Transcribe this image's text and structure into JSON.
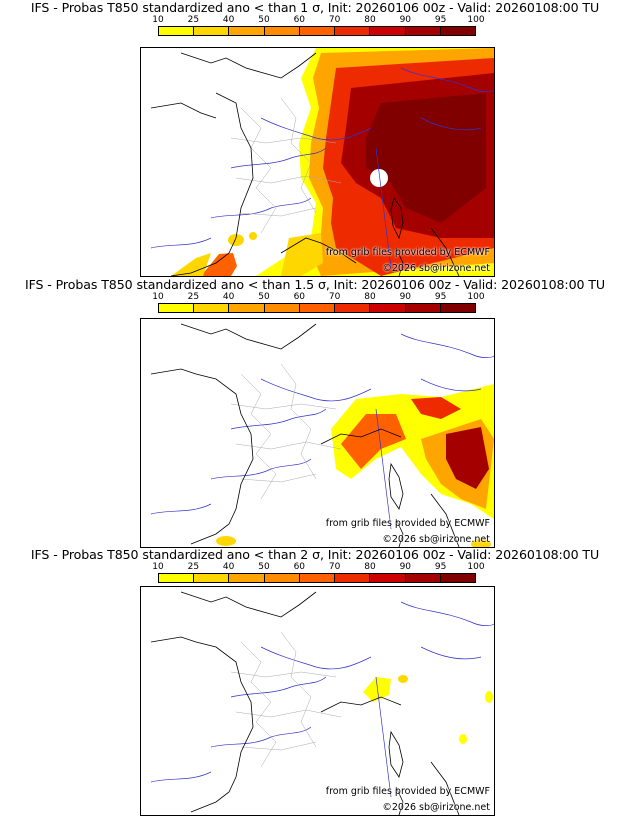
{
  "scale": {
    "labels": [
      "10",
      "25",
      "40",
      "50",
      "60",
      "70",
      "80",
      "90",
      "95",
      "100"
    ],
    "colors": [
      "#ffff00",
      "#ffd700",
      "#ffa500",
      "#ff8c00",
      "#ff6000",
      "#ee2a00",
      "#cc0000",
      "#a50000",
      "#800000"
    ]
  },
  "panels": [
    {
      "title": "IFS - Probas T850  standardized ano < than 1 σ, Init: 20260106 00z - Valid: 20260108:00 TU"
    },
    {
      "title": "IFS - Probas T850  standardized ano < than 1.5 σ, Init: 20260106 00z - Valid: 20260108:00 TU"
    },
    {
      "title": "IFS - Probas T850  standardized ano < than 2 σ, Init: 20260106 00z - Valid: 20260108:00 TU"
    }
  ],
  "credit": {
    "line1": "from grib files provided by ECMWF",
    "line2": "©2026 sb@irizone.net"
  },
  "colors": {
    "coast": "#000000",
    "rivers": "#3333cc",
    "borders": "#aaaaaa"
  }
}
